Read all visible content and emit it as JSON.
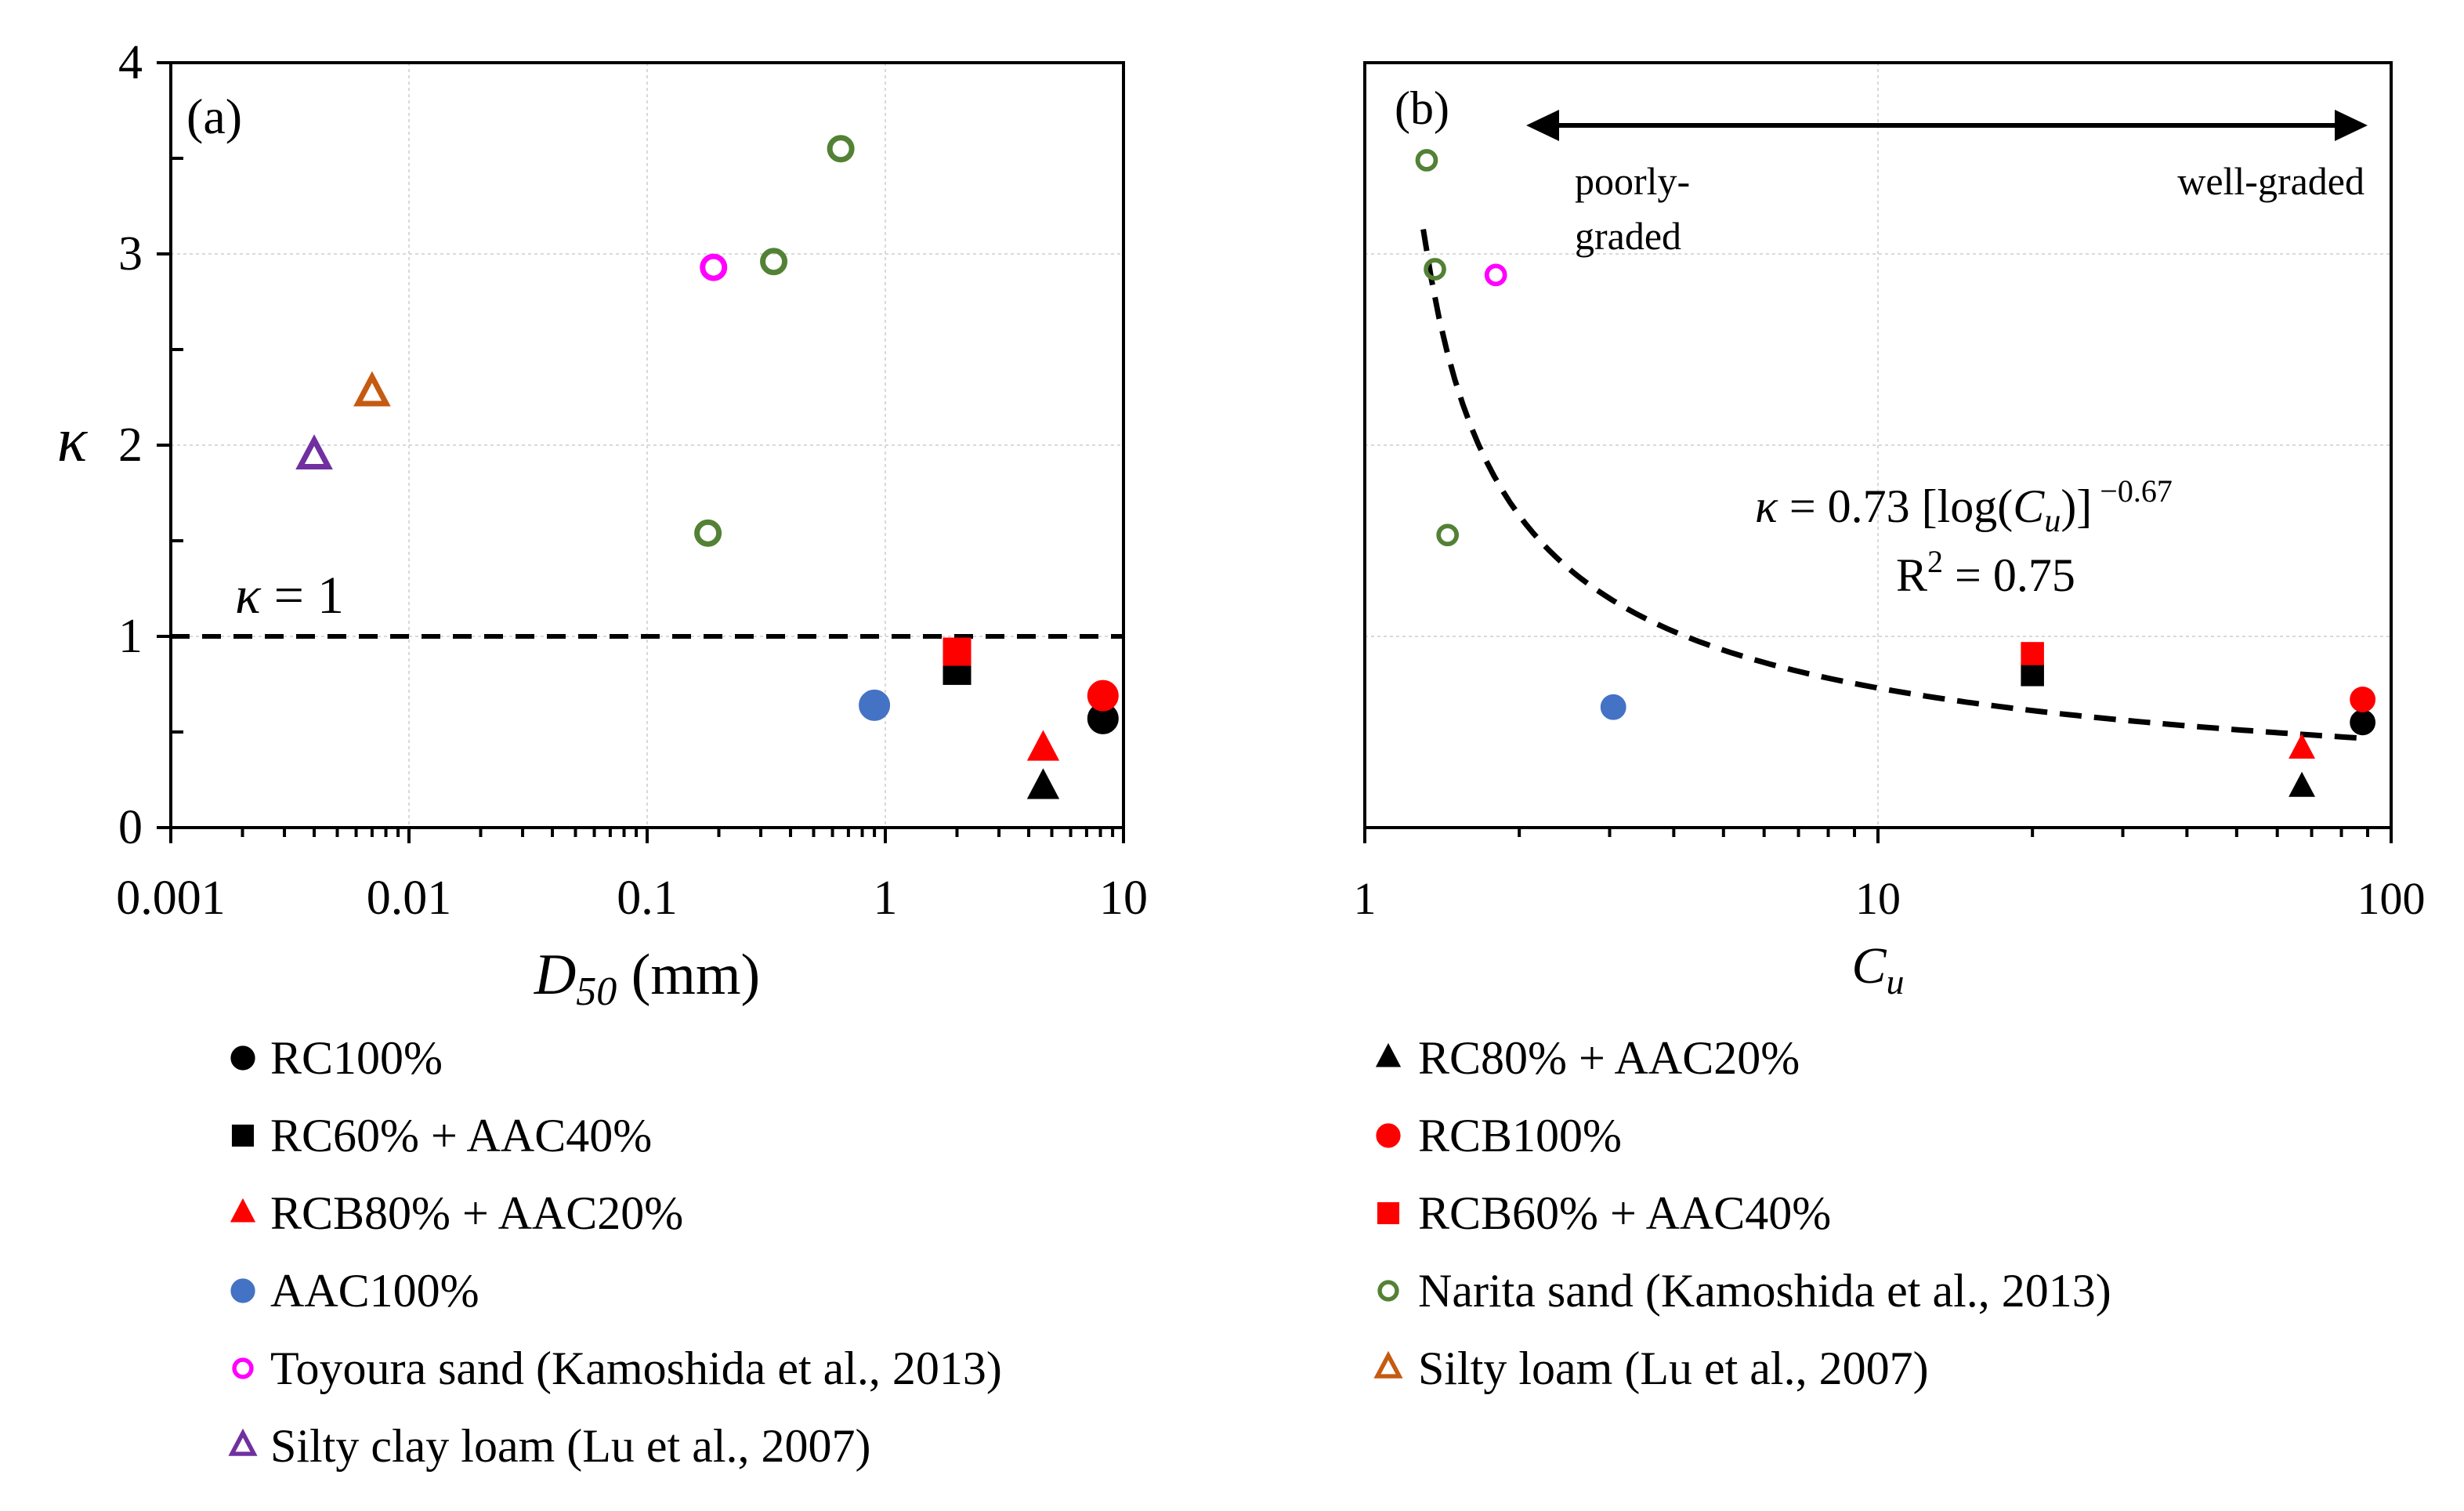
{
  "chart_data": [
    {
      "type": "scatter",
      "panel": "(a)",
      "x_scale": "log",
      "xlabel_symbol": "D",
      "xlabel_sub": "50",
      "xlabel_unit": "(mm)",
      "ylabel": "κ",
      "xlim": [
        0.001,
        10
      ],
      "ylim": [
        0,
        4
      ],
      "x_ticks": [
        "0.001",
        "0.01",
        "0.1",
        "1",
        "10"
      ],
      "y_ticks": [
        "0",
        "1",
        "2",
        "3",
        "4"
      ],
      "reference_line": {
        "y": 1,
        "label": "κ = 1"
      },
      "series": [
        {
          "name": "RC100%",
          "points": [
            [
              8.2,
              0.57
            ]
          ]
        },
        {
          "name": "RC80% + AAC20%",
          "points": [
            [
              4.6,
              0.21
            ]
          ]
        },
        {
          "name": "RC60% + AAC40%",
          "points": [
            [
              2.0,
              0.82
            ]
          ]
        },
        {
          "name": "RCB100%",
          "points": [
            [
              8.2,
              0.69
            ]
          ]
        },
        {
          "name": "RCB80% + AAC20%",
          "points": [
            [
              4.6,
              0.41
            ]
          ]
        },
        {
          "name": "RCB60% + AAC40%",
          "points": [
            [
              2.0,
              0.92
            ]
          ]
        },
        {
          "name": "AAC100%",
          "points": [
            [
              0.9,
              0.64
            ]
          ]
        },
        {
          "name": "Narita sand (Kamoshida et al., 2013)",
          "points": [
            [
              0.18,
              1.54
            ],
            [
              0.34,
              2.96
            ],
            [
              0.65,
              3.55
            ]
          ]
        },
        {
          "name": "Toyoura sand (Kamoshida et al., 2013)",
          "points": [
            [
              0.19,
              2.93
            ]
          ]
        },
        {
          "name": "Silty loam (Lu et al., 2007)",
          "points": [
            [
              0.007,
              2.27
            ]
          ]
        },
        {
          "name": "Silty clay loam (Lu et al., 2007)",
          "points": [
            [
              0.004,
              1.94
            ]
          ]
        }
      ]
    },
    {
      "type": "scatter",
      "panel": "(b)",
      "x_scale": "log",
      "xlabel_symbol": "C",
      "xlabel_sub": "u",
      "xlim": [
        1,
        100
      ],
      "ylim": [
        0,
        4
      ],
      "x_ticks": [
        "1",
        "10",
        "100"
      ],
      "arrow_left_label": [
        "poorly-",
        "graded"
      ],
      "arrow_right_label": "well-graded",
      "fit": {
        "equation_lhs": "κ",
        "equation_rhs": "= 0.73 [log(",
        "equation_var": "C",
        "equation_var_sub": "u",
        "equation_close": ")]",
        "equation_exp": "−0.67",
        "r2_label": "R",
        "r2_sup": "2",
        "r2_value": "= 0.75",
        "coef": 0.73,
        "power": -0.67,
        "x_range": [
          1.3,
          90
        ]
      },
      "series": [
        {
          "name": "RC100%",
          "points": [
            [
              88,
              0.55
            ]
          ]
        },
        {
          "name": "RC80% + AAC20%",
          "points": [
            [
              67,
              0.21
            ]
          ]
        },
        {
          "name": "RC60% + AAC40%",
          "points": [
            [
              20,
              0.8
            ]
          ]
        },
        {
          "name": "RCB100%",
          "points": [
            [
              88,
              0.67
            ]
          ]
        },
        {
          "name": "RCB80% + AAC20%",
          "points": [
            [
              67,
              0.41
            ]
          ]
        },
        {
          "name": "RCB60% + AAC40%",
          "points": [
            [
              20,
              0.91
            ]
          ]
        },
        {
          "name": "AAC100%",
          "points": [
            [
              3.05,
              0.63
            ]
          ]
        },
        {
          "name": "Narita sand (Kamoshida et al., 2013)",
          "points": [
            [
              1.32,
              3.49
            ],
            [
              1.37,
              2.92
            ],
            [
              1.45,
              1.53
            ]
          ]
        },
        {
          "name": "Toyoura sand (Kamoshida et al., 2013)",
          "points": [
            [
              1.8,
              2.89
            ]
          ]
        }
      ]
    }
  ],
  "legend": [
    {
      "label": "RC100%",
      "marker": "circle",
      "fill": "#000000",
      "stroke": "#000000",
      "filled": true
    },
    {
      "label": "RC80% + AAC20%",
      "marker": "triangle",
      "fill": "#000000",
      "stroke": "#000000",
      "filled": true
    },
    {
      "label": "RC60% + AAC40%",
      "marker": "square",
      "fill": "#000000",
      "stroke": "#000000",
      "filled": true
    },
    {
      "label": "RCB100%",
      "marker": "circle",
      "fill": "#ff0000",
      "stroke": "#ff0000",
      "filled": true
    },
    {
      "label": "RCB80% + AAC20%",
      "marker": "triangle",
      "fill": "#ff0000",
      "stroke": "#ff0000",
      "filled": true
    },
    {
      "label": "RCB60% + AAC40%",
      "marker": "square",
      "fill": "#ff0000",
      "stroke": "#ff0000",
      "filled": true
    },
    {
      "label": "AAC100%",
      "marker": "circle",
      "fill": "#4472c4",
      "stroke": "#4472c4",
      "filled": true
    },
    {
      "label": "Narita sand (Kamoshida et al., 2013)",
      "marker": "circle",
      "fill": "none",
      "stroke": "#538135",
      "filled": false
    },
    {
      "label": "Toyoura sand (Kamoshida et al., 2013)",
      "marker": "circle",
      "fill": "none",
      "stroke": "#ff00ff",
      "filled": false
    },
    {
      "label": "Silty loam (Lu et al., 2007)",
      "marker": "triangle",
      "fill": "none",
      "stroke": "#c55a11",
      "filled": false
    },
    {
      "label": "Silty clay loam (Lu et al., 2007)",
      "marker": "triangle",
      "fill": "none",
      "stroke": "#7030a0",
      "filled": false
    }
  ]
}
